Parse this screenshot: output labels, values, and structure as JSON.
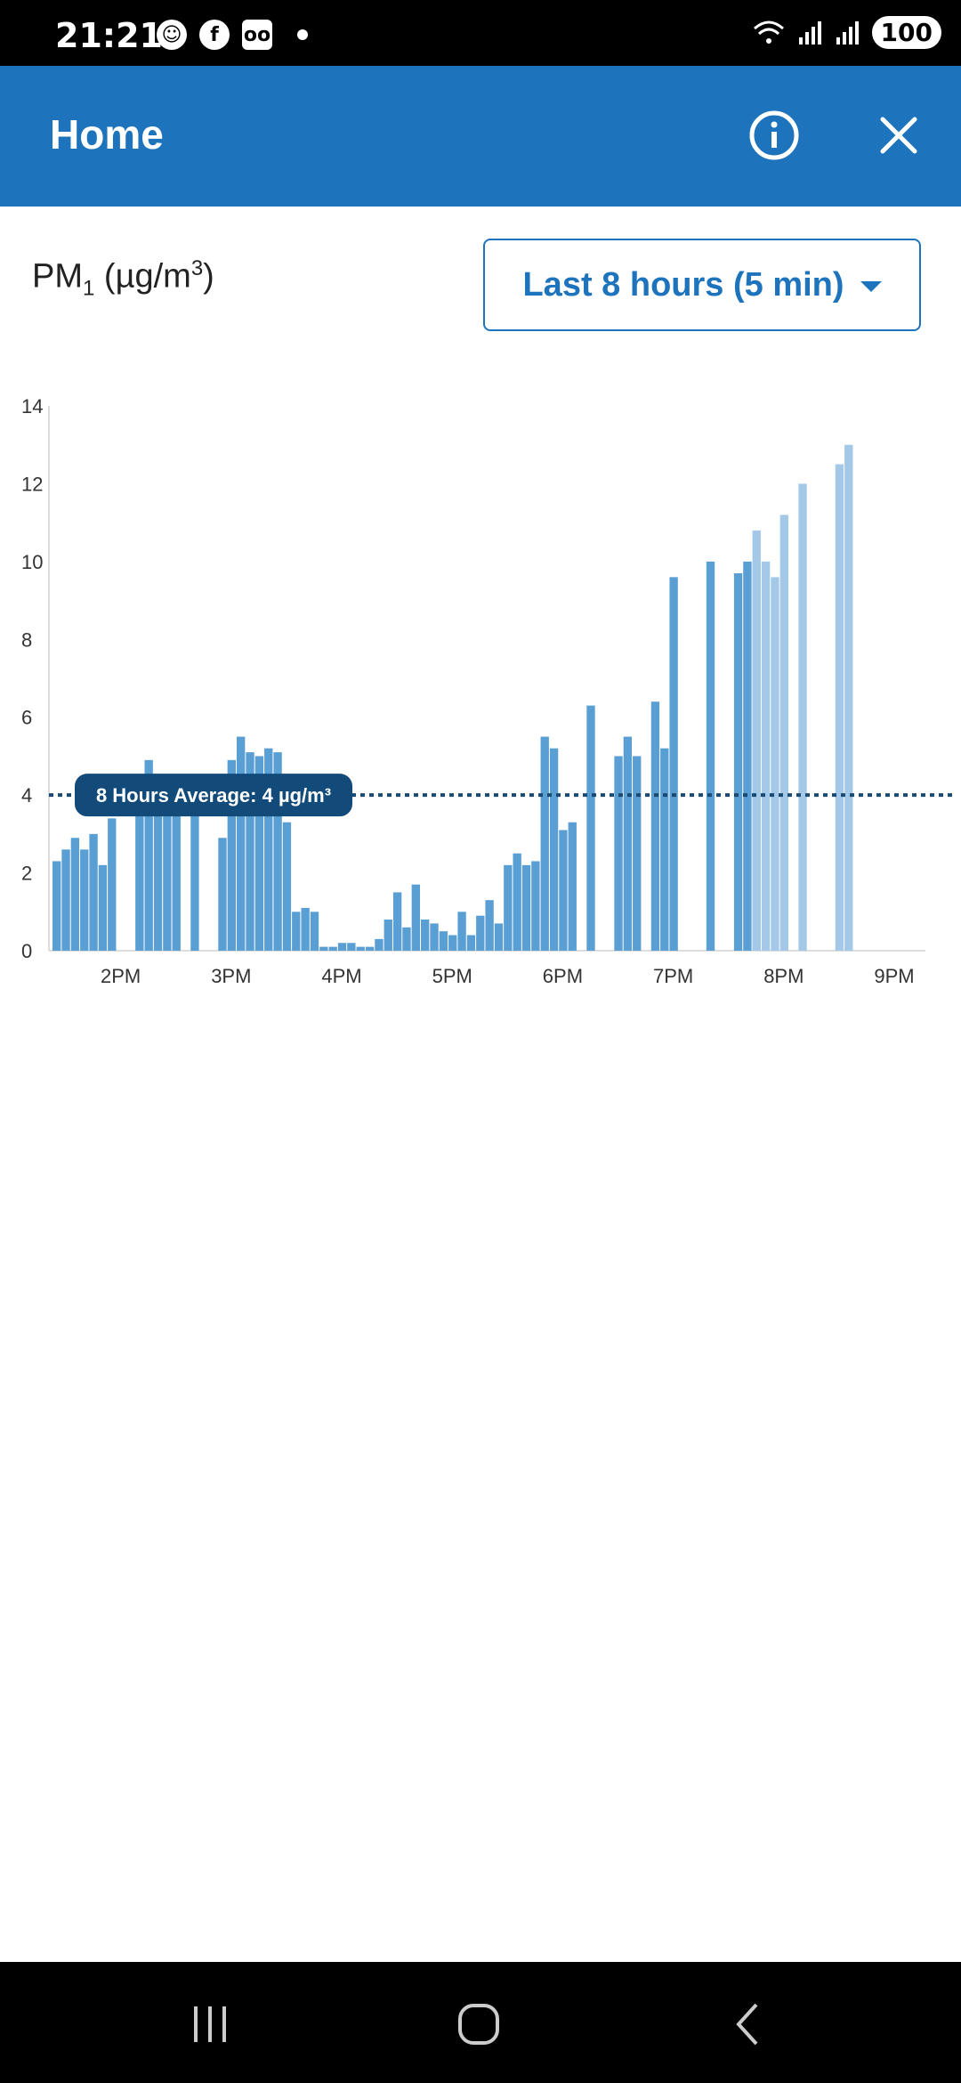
{
  "status": {
    "time": "21:21",
    "battery": "100"
  },
  "header": {
    "title": "Home"
  },
  "metric": {
    "label_main": "PM",
    "label_sub": "1",
    "label_unit_pre": " (µg/m",
    "label_unit_sup": "3",
    "label_unit_post": ")"
  },
  "range_select": {
    "value": "Last 8 hours (5 min)"
  },
  "colors": {
    "accent": "#1e74bc",
    "bar": "#5a9fd4",
    "bar_light": "#a4c9e8",
    "avg_line": "#1a4a72"
  },
  "chart_data": {
    "type": "bar",
    "ylim": [
      0,
      14
    ],
    "yticks": [
      0,
      2,
      4,
      6,
      8,
      10,
      12,
      14
    ],
    "xticks": [
      "2PM",
      "3PM",
      "4PM",
      "5PM",
      "6PM",
      "7PM",
      "8PM",
      "9PM"
    ],
    "x_start": "1:25PM",
    "interval_minutes": 5,
    "values": [
      2.3,
      2.6,
      2.9,
      2.6,
      3.0,
      2.2,
      3.4,
      null,
      null,
      3.5,
      4.9,
      4.5,
      4.0,
      4.0,
      null,
      4.0,
      null,
      null,
      2.9,
      4.9,
      5.5,
      5.1,
      5.0,
      5.2,
      5.1,
      3.3,
      1.0,
      1.1,
      1.0,
      0.1,
      0.1,
      0.2,
      0.2,
      0.1,
      0.1,
      0.3,
      0.8,
      1.5,
      0.6,
      1.7,
      0.8,
      0.7,
      0.5,
      0.4,
      1.0,
      0.4,
      0.9,
      1.3,
      0.7,
      2.2,
      2.5,
      2.2,
      2.3,
      5.5,
      5.2,
      3.1,
      3.3,
      null,
      6.3,
      null,
      null,
      5.0,
      5.5,
      5.0,
      null,
      6.4,
      5.2,
      9.6,
      null,
      null,
      null,
      10.0,
      null,
      null,
      9.7,
      10.0,
      10.0,
      null,
      null,
      null,
      null,
      null,
      null,
      null,
      null,
      null,
      null,
      null
    ],
    "light_values": [
      null,
      null,
      null,
      null,
      null,
      null,
      null,
      null,
      null,
      null,
      null,
      null,
      null,
      null,
      null,
      null,
      null,
      null,
      null,
      null,
      null,
      null,
      null,
      null,
      null,
      null,
      null,
      null,
      null,
      null,
      null,
      null,
      null,
      null,
      null,
      null,
      null,
      null,
      null,
      null,
      null,
      null,
      null,
      null,
      null,
      null,
      null,
      null,
      null,
      null,
      null,
      null,
      null,
      null,
      null,
      null,
      null,
      null,
      null,
      null,
      null,
      null,
      null,
      null,
      null,
      null,
      null,
      null,
      null,
      null,
      null,
      null,
      null,
      null,
      null,
      null,
      10.8,
      10.0,
      9.6,
      11.2,
      null,
      12.0,
      null,
      null,
      null,
      12.5,
      13.0
    ],
    "average": {
      "value": 4,
      "label": "8 Hours Average: 4 µg/m³"
    }
  }
}
